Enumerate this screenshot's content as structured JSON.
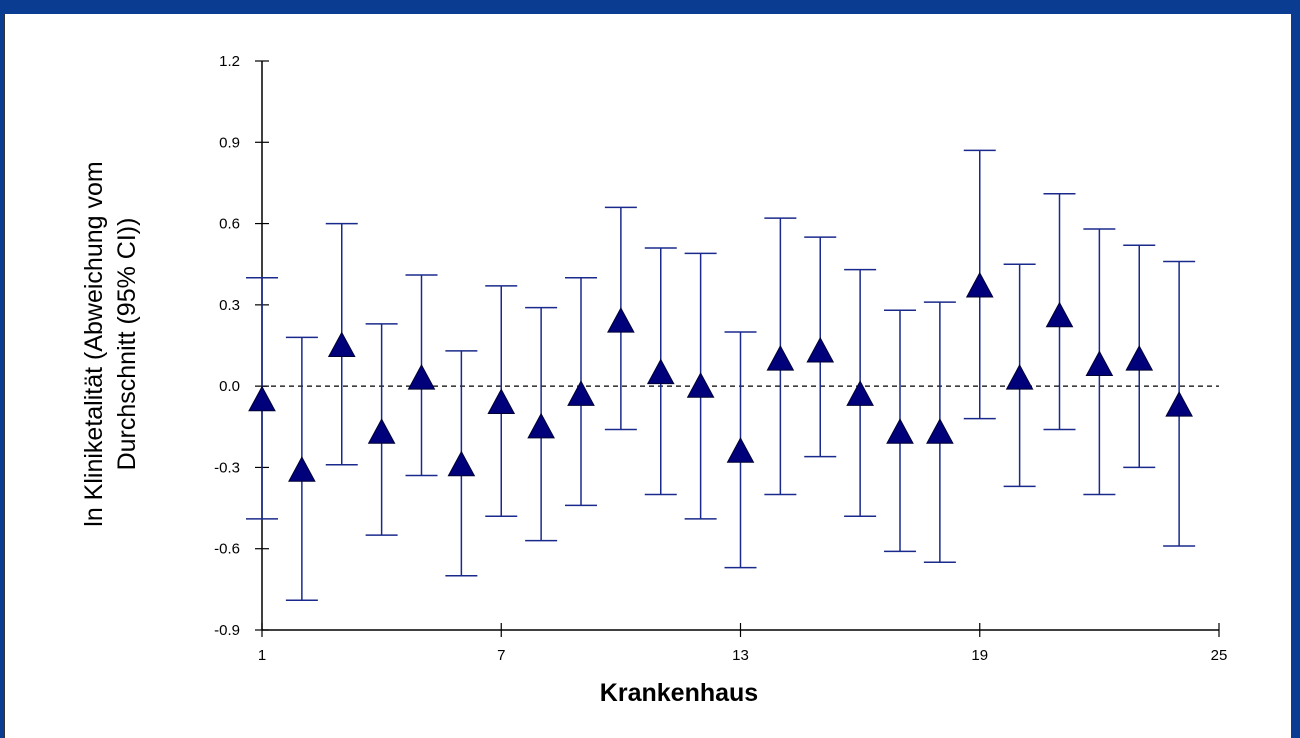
{
  "chart_data": {
    "type": "scatter",
    "title": "",
    "xlabel": "Krankenhaus",
    "ylabel_lines": [
      "ln Kliniketalität (Abweichung vom",
      "Durchschnitt (95% CI))"
    ],
    "xlim": [
      1,
      25
    ],
    "ylim": [
      -0.9,
      1.2
    ],
    "x_ticks": [
      1,
      7,
      13,
      19,
      25
    ],
    "y_ticks": [
      -0.9,
      -0.6,
      -0.3,
      0.0,
      0.3,
      0.6,
      0.9,
      1.2
    ],
    "y_tick_labels": [
      "-0.9",
      "-0.6",
      "-0.3",
      "0.0",
      "0.3",
      "0.6",
      "0.9",
      "1.2"
    ],
    "reference_line": 0.0,
    "grid": false,
    "marker": "triangle",
    "colors": {
      "marker": "#00007a",
      "error_bar": "#1a2a8c",
      "axis": "#000000",
      "frame": "#0a3d91"
    },
    "points": [
      {
        "x": 1,
        "y": -0.05,
        "lower": -0.49,
        "upper": 0.4
      },
      {
        "x": 2,
        "y": -0.31,
        "lower": -0.79,
        "upper": 0.18
      },
      {
        "x": 3,
        "y": 0.15,
        "lower": -0.29,
        "upper": 0.6
      },
      {
        "x": 4,
        "y": -0.17,
        "lower": -0.55,
        "upper": 0.23
      },
      {
        "x": 5,
        "y": 0.03,
        "lower": -0.33,
        "upper": 0.41
      },
      {
        "x": 6,
        "y": -0.29,
        "lower": -0.7,
        "upper": 0.13
      },
      {
        "x": 7,
        "y": -0.06,
        "lower": -0.48,
        "upper": 0.37
      },
      {
        "x": 8,
        "y": -0.15,
        "lower": -0.57,
        "upper": 0.29
      },
      {
        "x": 9,
        "y": -0.03,
        "lower": -0.44,
        "upper": 0.4
      },
      {
        "x": 10,
        "y": 0.24,
        "lower": -0.16,
        "upper": 0.66
      },
      {
        "x": 11,
        "y": 0.05,
        "lower": -0.4,
        "upper": 0.51
      },
      {
        "x": 12,
        "y": 0.0,
        "lower": -0.49,
        "upper": 0.49
      },
      {
        "x": 13,
        "y": -0.24,
        "lower": -0.67,
        "upper": 0.2
      },
      {
        "x": 14,
        "y": 0.1,
        "lower": -0.4,
        "upper": 0.62
      },
      {
        "x": 15,
        "y": 0.13,
        "lower": -0.26,
        "upper": 0.55
      },
      {
        "x": 16,
        "y": -0.03,
        "lower": -0.48,
        "upper": 0.43
      },
      {
        "x": 17,
        "y": -0.17,
        "lower": -0.61,
        "upper": 0.28
      },
      {
        "x": 18,
        "y": -0.17,
        "lower": -0.65,
        "upper": 0.31
      },
      {
        "x": 19,
        "y": 0.37,
        "lower": -0.12,
        "upper": 0.87
      },
      {
        "x": 20,
        "y": 0.03,
        "lower": -0.37,
        "upper": 0.45
      },
      {
        "x": 21,
        "y": 0.26,
        "lower": -0.16,
        "upper": 0.71
      },
      {
        "x": 22,
        "y": 0.08,
        "lower": -0.4,
        "upper": 0.58
      },
      {
        "x": 23,
        "y": 0.1,
        "lower": -0.3,
        "upper": 0.52
      },
      {
        "x": 24,
        "y": -0.07,
        "lower": -0.59,
        "upper": 0.46
      }
    ]
  }
}
